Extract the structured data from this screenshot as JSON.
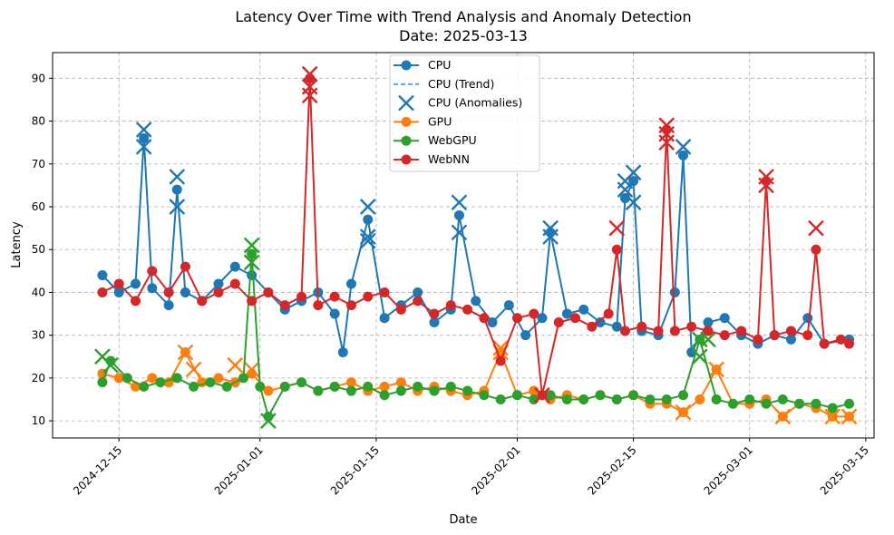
{
  "chart_data": {
    "type": "line",
    "title": "Latency Over Time with Trend Analysis and Anomaly Detection",
    "subtitle": "Date: 2025-03-13",
    "xlabel": "Date",
    "ylabel": "Latency",
    "x_range": [
      "2024-12-07",
      "2025-03-16"
    ],
    "ylim": [
      6,
      96
    ],
    "grid": true,
    "legend_position": "top-center",
    "x_ticks": [
      "2024-12-15",
      "2025-01-01",
      "2025-01-15",
      "2025-02-01",
      "2025-02-15",
      "2025-03-01",
      "2025-03-15"
    ],
    "y_ticks": [
      10,
      20,
      30,
      40,
      50,
      60,
      70,
      80,
      90
    ],
    "legend": [
      {
        "label": "CPU",
        "kind": "line-marker",
        "color": "#1f77b4"
      },
      {
        "label": "CPU (Trend)",
        "kind": "dashed",
        "color": "#5b9bd5"
      },
      {
        "label": "CPU (Anomalies)",
        "kind": "x-marker",
        "color": "#1f77b4"
      },
      {
        "label": "GPU",
        "kind": "line-marker",
        "color": "#ff7f0e"
      },
      {
        "label": "WebGPU",
        "kind": "line-marker",
        "color": "#2ca02c"
      },
      {
        "label": "WebNN",
        "kind": "line-marker",
        "color": "#d62728"
      }
    ],
    "series": [
      {
        "name": "CPU",
        "color": "#1f77b4",
        "points": [
          [
            "2024-12-13",
            44
          ],
          [
            "2024-12-15",
            40
          ],
          [
            "2024-12-17",
            42
          ],
          [
            "2024-12-18",
            76
          ],
          [
            "2024-12-19",
            41
          ],
          [
            "2024-12-21",
            37
          ],
          [
            "2024-12-22",
            64
          ],
          [
            "2024-12-23",
            40
          ],
          [
            "2024-12-25",
            38
          ],
          [
            "2024-12-27",
            42
          ],
          [
            "2024-12-29",
            46
          ],
          [
            "2024-12-31",
            44
          ],
          [
            "2025-01-02",
            40
          ],
          [
            "2025-01-04",
            36
          ],
          [
            "2025-01-06",
            38
          ],
          [
            "2025-01-08",
            40
          ],
          [
            "2025-01-10",
            35
          ],
          [
            "2025-01-11",
            26
          ],
          [
            "2025-01-12",
            42
          ],
          [
            "2025-01-14",
            57
          ],
          [
            "2025-01-16",
            34
          ],
          [
            "2025-01-18",
            37
          ],
          [
            "2025-01-20",
            40
          ],
          [
            "2025-01-22",
            33
          ],
          [
            "2025-01-24",
            36
          ],
          [
            "2025-01-25",
            58
          ],
          [
            "2025-01-27",
            38
          ],
          [
            "2025-01-29",
            33
          ],
          [
            "2025-01-31",
            37
          ],
          [
            "2025-02-02",
            30
          ],
          [
            "2025-02-04",
            34
          ],
          [
            "2025-02-05",
            54
          ],
          [
            "2025-02-07",
            35
          ],
          [
            "2025-02-09",
            36
          ],
          [
            "2025-02-11",
            33
          ],
          [
            "2025-02-13",
            32
          ],
          [
            "2025-02-14",
            62
          ],
          [
            "2025-02-15",
            66
          ],
          [
            "2025-02-16",
            31
          ],
          [
            "2025-02-18",
            30
          ],
          [
            "2025-02-20",
            40
          ],
          [
            "2025-02-21",
            72
          ],
          [
            "2025-02-22",
            26
          ],
          [
            "2025-02-24",
            33
          ],
          [
            "2025-02-26",
            34
          ],
          [
            "2025-02-28",
            30
          ],
          [
            "2025-03-02",
            28
          ],
          [
            "2025-03-04",
            30
          ],
          [
            "2025-03-06",
            29
          ],
          [
            "2025-03-08",
            34
          ],
          [
            "2025-03-10",
            28
          ],
          [
            "2025-03-13",
            29
          ]
        ],
        "anomalies": [
          [
            "2024-12-18",
            78
          ],
          [
            "2024-12-18",
            74
          ],
          [
            "2024-12-22",
            67
          ],
          [
            "2024-12-22",
            60
          ],
          [
            "2025-01-14",
            60
          ],
          [
            "2025-01-14",
            53
          ],
          [
            "2025-01-14",
            52
          ],
          [
            "2025-01-25",
            61
          ],
          [
            "2025-01-25",
            54
          ],
          [
            "2025-02-05",
            55
          ],
          [
            "2025-02-05",
            53
          ],
          [
            "2025-02-14",
            66
          ],
          [
            "2025-02-14",
            64
          ],
          [
            "2025-02-15",
            68
          ],
          [
            "2025-02-15",
            61
          ],
          [
            "2025-02-21",
            74
          ]
        ]
      },
      {
        "name": "GPU",
        "color": "#ff7f0e",
        "points": [
          [
            "2024-12-13",
            21
          ],
          [
            "2024-12-15",
            20
          ],
          [
            "2024-12-17",
            18
          ],
          [
            "2024-12-19",
            20
          ],
          [
            "2024-12-21",
            19
          ],
          [
            "2024-12-23",
            26
          ],
          [
            "2024-12-25",
            19
          ],
          [
            "2024-12-27",
            20
          ],
          [
            "2024-12-29",
            19
          ],
          [
            "2024-12-31",
            21
          ],
          [
            "2025-01-02",
            17
          ],
          [
            "2025-01-04",
            18
          ],
          [
            "2025-01-06",
            19
          ],
          [
            "2025-01-08",
            17
          ],
          [
            "2025-01-10",
            18
          ],
          [
            "2025-01-12",
            19
          ],
          [
            "2025-01-14",
            17
          ],
          [
            "2025-01-16",
            18
          ],
          [
            "2025-01-18",
            19
          ],
          [
            "2025-01-20",
            17
          ],
          [
            "2025-01-22",
            18
          ],
          [
            "2025-01-24",
            17
          ],
          [
            "2025-01-26",
            16
          ],
          [
            "2025-01-28",
            17
          ],
          [
            "2025-01-30",
            26
          ],
          [
            "2025-02-01",
            16
          ],
          [
            "2025-02-03",
            17
          ],
          [
            "2025-02-05",
            15
          ],
          [
            "2025-02-07",
            16
          ],
          [
            "2025-02-09",
            15
          ],
          [
            "2025-02-11",
            16
          ],
          [
            "2025-02-13",
            15
          ],
          [
            "2025-02-15",
            16
          ],
          [
            "2025-02-17",
            14
          ],
          [
            "2025-02-19",
            14
          ],
          [
            "2025-02-21",
            12
          ],
          [
            "2025-02-23",
            15
          ],
          [
            "2025-02-25",
            22
          ],
          [
            "2025-02-27",
            14
          ],
          [
            "2025-03-01",
            14
          ],
          [
            "2025-03-03",
            15
          ],
          [
            "2025-03-05",
            11
          ],
          [
            "2025-03-07",
            14
          ],
          [
            "2025-03-09",
            13
          ],
          [
            "2025-03-11",
            11
          ],
          [
            "2025-03-13",
            11
          ]
        ],
        "anomalies": [
          [
            "2024-12-23",
            26
          ],
          [
            "2024-12-24",
            22
          ],
          [
            "2024-12-29",
            23
          ],
          [
            "2024-12-31",
            22
          ],
          [
            "2025-01-30",
            27
          ],
          [
            "2025-01-30",
            26
          ],
          [
            "2025-02-21",
            12
          ],
          [
            "2025-02-25",
            22
          ],
          [
            "2025-03-05",
            11
          ],
          [
            "2025-03-11",
            11
          ],
          [
            "2025-03-13",
            11
          ]
        ]
      },
      {
        "name": "WebGPU",
        "color": "#2ca02c",
        "points": [
          [
            "2024-12-13",
            19
          ],
          [
            "2024-12-14",
            24
          ],
          [
            "2024-12-16",
            20
          ],
          [
            "2024-12-18",
            18
          ],
          [
            "2024-12-20",
            19
          ],
          [
            "2024-12-22",
            20
          ],
          [
            "2024-12-24",
            18
          ],
          [
            "2024-12-26",
            19
          ],
          [
            "2024-12-28",
            18
          ],
          [
            "2024-12-30",
            20
          ],
          [
            "2024-12-31",
            49
          ],
          [
            "2025-01-01",
            18
          ],
          [
            "2025-01-02",
            11
          ],
          [
            "2025-01-04",
            18
          ],
          [
            "2025-01-06",
            19
          ],
          [
            "2025-01-08",
            17
          ],
          [
            "2025-01-10",
            18
          ],
          [
            "2025-01-12",
            17
          ],
          [
            "2025-01-14",
            18
          ],
          [
            "2025-01-16",
            16
          ],
          [
            "2025-01-18",
            17
          ],
          [
            "2025-01-20",
            18
          ],
          [
            "2025-01-22",
            17
          ],
          [
            "2025-01-24",
            18
          ],
          [
            "2025-01-26",
            17
          ],
          [
            "2025-01-28",
            16
          ],
          [
            "2025-01-30",
            15
          ],
          [
            "2025-02-01",
            16
          ],
          [
            "2025-02-03",
            15
          ],
          [
            "2025-02-05",
            16
          ],
          [
            "2025-02-07",
            15
          ],
          [
            "2025-02-09",
            15
          ],
          [
            "2025-02-11",
            16
          ],
          [
            "2025-02-13",
            15
          ],
          [
            "2025-02-15",
            16
          ],
          [
            "2025-02-17",
            15
          ],
          [
            "2025-02-19",
            15
          ],
          [
            "2025-02-21",
            16
          ],
          [
            "2025-02-23",
            29
          ],
          [
            "2025-02-25",
            15
          ],
          [
            "2025-02-27",
            14
          ],
          [
            "2025-03-01",
            15
          ],
          [
            "2025-03-03",
            14
          ],
          [
            "2025-03-05",
            15
          ],
          [
            "2025-03-07",
            14
          ],
          [
            "2025-03-09",
            14
          ],
          [
            "2025-03-11",
            13
          ],
          [
            "2025-03-13",
            14
          ]
        ],
        "anomalies": [
          [
            "2024-12-13",
            25
          ],
          [
            "2024-12-14",
            23
          ],
          [
            "2024-12-31",
            51
          ],
          [
            "2024-12-31",
            47
          ],
          [
            "2025-01-02",
            10
          ],
          [
            "2025-02-23",
            29
          ],
          [
            "2025-02-23",
            25
          ],
          [
            "2025-02-24",
            29
          ]
        ]
      },
      {
        "name": "WebNN",
        "color": "#d62728",
        "points": [
          [
            "2024-12-13",
            40
          ],
          [
            "2024-12-15",
            42
          ],
          [
            "2024-12-17",
            38
          ],
          [
            "2024-12-19",
            45
          ],
          [
            "2024-12-21",
            40
          ],
          [
            "2024-12-23",
            46
          ],
          [
            "2024-12-25",
            38
          ],
          [
            "2024-12-27",
            40
          ],
          [
            "2024-12-29",
            42
          ],
          [
            "2024-12-31",
            38
          ],
          [
            "2025-01-02",
            40
          ],
          [
            "2025-01-04",
            37
          ],
          [
            "2025-01-06",
            39
          ],
          [
            "2025-01-07",
            90
          ],
          [
            "2025-01-08",
            37
          ],
          [
            "2025-01-10",
            39
          ],
          [
            "2025-01-12",
            37
          ],
          [
            "2025-01-14",
            39
          ],
          [
            "2025-01-16",
            40
          ],
          [
            "2025-01-18",
            36
          ],
          [
            "2025-01-20",
            38
          ],
          [
            "2025-01-22",
            35
          ],
          [
            "2025-01-24",
            37
          ],
          [
            "2025-01-26",
            36
          ],
          [
            "2025-01-28",
            34
          ],
          [
            "2025-01-30",
            24
          ],
          [
            "2025-02-01",
            34
          ],
          [
            "2025-02-03",
            35
          ],
          [
            "2025-02-04",
            16
          ],
          [
            "2025-02-06",
            33
          ],
          [
            "2025-02-08",
            34
          ],
          [
            "2025-02-10",
            32
          ],
          [
            "2025-02-12",
            35
          ],
          [
            "2025-02-13",
            50
          ],
          [
            "2025-02-14",
            31
          ],
          [
            "2025-02-16",
            32
          ],
          [
            "2025-02-18",
            31
          ],
          [
            "2025-02-19",
            78
          ],
          [
            "2025-02-20",
            31
          ],
          [
            "2025-02-22",
            32
          ],
          [
            "2025-02-24",
            31
          ],
          [
            "2025-02-26",
            30
          ],
          [
            "2025-02-28",
            31
          ],
          [
            "2025-03-02",
            29
          ],
          [
            "2025-03-03",
            66
          ],
          [
            "2025-03-04",
            30
          ],
          [
            "2025-03-06",
            31
          ],
          [
            "2025-03-08",
            30
          ],
          [
            "2025-03-09",
            50
          ],
          [
            "2025-03-10",
            28
          ],
          [
            "2025-03-12",
            29
          ],
          [
            "2025-03-13",
            28
          ]
        ],
        "anomalies": [
          [
            "2025-01-07",
            91
          ],
          [
            "2025-01-07",
            88
          ],
          [
            "2025-01-07",
            86
          ],
          [
            "2025-02-04",
            16
          ],
          [
            "2025-02-13",
            55
          ],
          [
            "2025-02-19",
            79
          ],
          [
            "2025-02-19",
            77
          ],
          [
            "2025-02-19",
            75
          ],
          [
            "2025-03-03",
            67
          ],
          [
            "2025-03-03",
            65
          ],
          [
            "2025-03-09",
            55
          ]
        ]
      }
    ]
  }
}
